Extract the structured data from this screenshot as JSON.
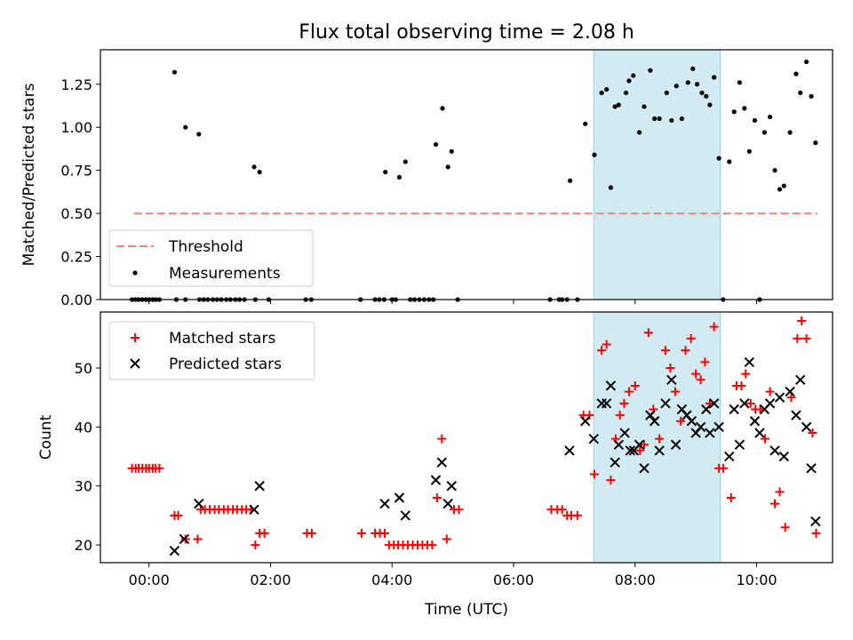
{
  "title": "Flux total observing time = 2.08 h",
  "chart_data": [
    {
      "panel": "top",
      "type": "scatter",
      "ylabel": "Matched/Predicted stars",
      "ylim": [
        0,
        1.45
      ],
      "yticks": [
        0.0,
        0.25,
        0.5,
        0.75,
        1.0,
        1.25
      ],
      "ytick_labels": [
        "0.00",
        "0.25",
        "0.50",
        "0.75",
        "1.00",
        "1.25"
      ],
      "grid": false,
      "legend_position": "lower-left",
      "threshold": {
        "name": "Threshold",
        "value": 0.5,
        "x_range": [
          -0.25,
          11.0
        ],
        "color": "#ff7f7f",
        "style": "dashed"
      },
      "series": [
        {
          "name": "Measurements",
          "marker": "dot",
          "color": "#000000",
          "points": [
            [
              -0.28,
              0
            ],
            [
              -0.22,
              0
            ],
            [
              -0.17,
              0
            ],
            [
              -0.11,
              0
            ],
            [
              -0.05,
              0
            ],
            [
              0.0,
              0
            ],
            [
              0.06,
              0
            ],
            [
              0.11,
              0
            ],
            [
              0.17,
              0
            ],
            [
              0.42,
              1.32
            ],
            [
              0.6,
              1.0
            ],
            [
              0.82,
              0.96
            ],
            [
              1.73,
              0.77
            ],
            [
              1.82,
              0.74
            ],
            [
              0.45,
              0
            ],
            [
              0.6,
              0
            ],
            [
              0.83,
              0
            ],
            [
              0.9,
              0
            ],
            [
              0.97,
              0
            ],
            [
              1.05,
              0
            ],
            [
              1.12,
              0
            ],
            [
              1.19,
              0
            ],
            [
              1.27,
              0
            ],
            [
              1.34,
              0
            ],
            [
              1.42,
              0
            ],
            [
              1.49,
              0
            ],
            [
              1.57,
              0
            ],
            [
              1.75,
              0
            ],
            [
              1.97,
              0
            ],
            [
              2.58,
              0
            ],
            [
              2.67,
              0
            ],
            [
              3.48,
              0
            ],
            [
              3.72,
              0
            ],
            [
              3.79,
              0
            ],
            [
              3.87,
              0
            ],
            [
              3.89,
              0.74
            ],
            [
              4.0,
              0
            ],
            [
              4.06,
              0
            ],
            [
              4.12,
              0.71
            ],
            [
              4.22,
              0.8
            ],
            [
              4.3,
              0
            ],
            [
              4.37,
              0
            ],
            [
              4.45,
              0
            ],
            [
              4.53,
              0
            ],
            [
              4.61,
              0
            ],
            [
              4.68,
              0
            ],
            [
              4.72,
              0.9
            ],
            [
              4.83,
              1.11
            ],
            [
              4.92,
              0.77
            ],
            [
              4.98,
              0.86
            ],
            [
              5.08,
              0
            ],
            [
              6.6,
              0
            ],
            [
              6.75,
              0
            ],
            [
              6.8,
              0
            ],
            [
              6.88,
              0
            ],
            [
              6.93,
              0.69
            ],
            [
              7.05,
              0
            ],
            [
              7.18,
              1.02
            ],
            [
              7.33,
              0.84
            ],
            [
              7.45,
              1.2
            ],
            [
              7.53,
              1.22
            ],
            [
              7.6,
              0.65
            ],
            [
              7.67,
              1.12
            ],
            [
              7.73,
              1.13
            ],
            [
              7.85,
              1.2
            ],
            [
              7.9,
              1.27
            ],
            [
              7.97,
              1.3
            ],
            [
              8.07,
              0.97
            ],
            [
              8.15,
              1.12
            ],
            [
              8.25,
              1.33
            ],
            [
              8.32,
              1.05
            ],
            [
              8.4,
              1.05
            ],
            [
              8.52,
              1.2
            ],
            [
              8.6,
              1.04
            ],
            [
              8.68,
              1.24
            ],
            [
              8.77,
              1.05
            ],
            [
              8.87,
              1.26
            ],
            [
              8.95,
              1.34
            ],
            [
              9.02,
              1.25
            ],
            [
              9.1,
              1.2
            ],
            [
              9.17,
              1.18
            ],
            [
              9.23,
              1.13
            ],
            [
              9.3,
              1.29
            ],
            [
              9.38,
              0.82
            ],
            [
              9.45,
              0
            ],
            [
              9.55,
              0.8
            ],
            [
              9.63,
              1.09
            ],
            [
              9.72,
              1.26
            ],
            [
              9.8,
              1.11
            ],
            [
              9.88,
              0.86
            ],
            [
              9.97,
              1.04
            ],
            [
              10.05,
              0
            ],
            [
              10.13,
              0.97
            ],
            [
              10.22,
              1.06
            ],
            [
              10.3,
              0.75
            ],
            [
              10.38,
              0.64
            ],
            [
              10.45,
              0.66
            ],
            [
              10.55,
              0.97
            ],
            [
              10.65,
              1.31
            ],
            [
              10.72,
              1.2
            ],
            [
              10.82,
              1.38
            ],
            [
              10.9,
              1.18
            ],
            [
              10.97,
              0.91
            ]
          ]
        }
      ]
    },
    {
      "panel": "bottom",
      "type": "scatter",
      "xlabel": "Time (UTC)",
      "ylabel": "Count",
      "xlim": [
        -0.8,
        11.25
      ],
      "ylim": [
        17,
        59.5
      ],
      "xticks": [
        0,
        2,
        4,
        6,
        8,
        10
      ],
      "xtick_labels": [
        "00:00",
        "02:00",
        "04:00",
        "06:00",
        "08:00",
        "10:00"
      ],
      "yticks": [
        20,
        30,
        40,
        50
      ],
      "ytick_labels": [
        "20",
        "30",
        "40",
        "50"
      ],
      "grid": false,
      "legend_position": "upper-left",
      "shaded_span": {
        "x_range": [
          7.32,
          9.4
        ],
        "color": "#add8e6"
      },
      "series": [
        {
          "name": "Matched stars",
          "marker": "plus",
          "color": "#ff0000",
          "points": [
            [
              -0.28,
              33
            ],
            [
              -0.22,
              33
            ],
            [
              -0.17,
              33
            ],
            [
              -0.11,
              33
            ],
            [
              -0.05,
              33
            ],
            [
              0.0,
              33
            ],
            [
              0.06,
              33
            ],
            [
              0.11,
              33
            ],
            [
              0.17,
              33
            ],
            [
              0.42,
              25
            ],
            [
              0.48,
              25
            ],
            [
              0.6,
              21
            ],
            [
              0.8,
              21
            ],
            [
              0.85,
              26
            ],
            [
              0.92,
              26
            ],
            [
              1.0,
              26
            ],
            [
              1.08,
              26
            ],
            [
              1.15,
              26
            ],
            [
              1.23,
              26
            ],
            [
              1.3,
              26
            ],
            [
              1.38,
              26
            ],
            [
              1.45,
              26
            ],
            [
              1.53,
              26
            ],
            [
              1.6,
              26
            ],
            [
              1.68,
              26
            ],
            [
              1.75,
              20
            ],
            [
              1.82,
              22
            ],
            [
              1.9,
              22
            ],
            [
              2.6,
              22
            ],
            [
              2.68,
              22
            ],
            [
              3.5,
              22
            ],
            [
              3.72,
              22
            ],
            [
              3.8,
              22
            ],
            [
              3.88,
              22
            ],
            [
              3.95,
              20
            ],
            [
              4.03,
              20
            ],
            [
              4.1,
              20
            ],
            [
              4.18,
              20
            ],
            [
              4.26,
              20
            ],
            [
              4.34,
              20
            ],
            [
              4.42,
              20
            ],
            [
              4.5,
              20
            ],
            [
              4.58,
              20
            ],
            [
              4.66,
              20
            ],
            [
              4.74,
              28
            ],
            [
              4.82,
              38
            ],
            [
              4.9,
              21
            ],
            [
              5.02,
              26
            ],
            [
              5.1,
              26
            ],
            [
              6.62,
              26
            ],
            [
              6.72,
              26
            ],
            [
              6.8,
              26
            ],
            [
              6.88,
              25
            ],
            [
              6.95,
              25
            ],
            [
              7.05,
              25
            ],
            [
              7.15,
              42
            ],
            [
              7.25,
              42
            ],
            [
              7.33,
              32
            ],
            [
              7.45,
              53
            ],
            [
              7.53,
              54
            ],
            [
              7.6,
              31
            ],
            [
              7.68,
              38
            ],
            [
              7.75,
              42
            ],
            [
              7.82,
              44
            ],
            [
              7.9,
              46
            ],
            [
              8.0,
              47
            ],
            [
              8.08,
              36
            ],
            [
              8.15,
              37
            ],
            [
              8.22,
              56
            ],
            [
              8.3,
              43
            ],
            [
              8.4,
              38
            ],
            [
              8.5,
              53
            ],
            [
              8.58,
              50
            ],
            [
              8.66,
              46
            ],
            [
              8.75,
              41
            ],
            [
              8.83,
              53
            ],
            [
              8.92,
              55
            ],
            [
              9.0,
              49
            ],
            [
              9.08,
              48
            ],
            [
              9.15,
              51
            ],
            [
              9.23,
              44
            ],
            [
              9.3,
              57
            ],
            [
              9.38,
              33
            ],
            [
              9.45,
              33
            ],
            [
              9.58,
              28
            ],
            [
              9.67,
              47
            ],
            [
              9.75,
              47
            ],
            [
              9.82,
              49
            ],
            [
              9.9,
              44
            ],
            [
              9.98,
              43
            ],
            [
              10.06,
              43
            ],
            [
              10.14,
              38
            ],
            [
              10.22,
              46
            ],
            [
              10.3,
              27
            ],
            [
              10.38,
              29
            ],
            [
              10.47,
              23
            ],
            [
              10.57,
              45
            ],
            [
              10.67,
              55
            ],
            [
              10.74,
              58
            ],
            [
              10.82,
              55
            ],
            [
              10.92,
              39
            ],
            [
              10.98,
              22
            ]
          ]
        },
        {
          "name": "Predicted stars",
          "marker": "x",
          "color": "#000000",
          "points": [
            [
              0.42,
              19
            ],
            [
              0.58,
              21
            ],
            [
              0.82,
              27
            ],
            [
              1.73,
              26
            ],
            [
              1.82,
              30
            ],
            [
              3.88,
              27
            ],
            [
              4.12,
              28
            ],
            [
              4.22,
              25
            ],
            [
              4.72,
              31
            ],
            [
              4.82,
              34
            ],
            [
              4.92,
              27
            ],
            [
              4.98,
              30
            ],
            [
              6.92,
              36
            ],
            [
              7.18,
              41
            ],
            [
              7.32,
              38
            ],
            [
              7.45,
              44
            ],
            [
              7.53,
              44
            ],
            [
              7.6,
              47
            ],
            [
              7.67,
              34
            ],
            [
              7.73,
              37
            ],
            [
              7.83,
              39
            ],
            [
              7.92,
              36
            ],
            [
              7.98,
              36
            ],
            [
              8.07,
              37
            ],
            [
              8.15,
              33
            ],
            [
              8.25,
              42
            ],
            [
              8.32,
              41
            ],
            [
              8.4,
              36
            ],
            [
              8.5,
              44
            ],
            [
              8.6,
              48
            ],
            [
              8.67,
              37
            ],
            [
              8.77,
              43
            ],
            [
              8.85,
              42
            ],
            [
              8.93,
              41
            ],
            [
              9.0,
              39
            ],
            [
              9.08,
              40
            ],
            [
              9.17,
              43
            ],
            [
              9.23,
              39
            ],
            [
              9.3,
              44
            ],
            [
              9.38,
              40
            ],
            [
              9.55,
              35
            ],
            [
              9.63,
              43
            ],
            [
              9.72,
              37
            ],
            [
              9.8,
              44
            ],
            [
              9.88,
              51
            ],
            [
              9.97,
              41
            ],
            [
              10.05,
              39
            ],
            [
              10.13,
              43
            ],
            [
              10.22,
              44
            ],
            [
              10.3,
              36
            ],
            [
              10.38,
              45
            ],
            [
              10.45,
              35
            ],
            [
              10.55,
              46
            ],
            [
              10.65,
              42
            ],
            [
              10.72,
              48
            ],
            [
              10.82,
              40
            ],
            [
              10.9,
              33
            ],
            [
              10.97,
              24
            ]
          ]
        }
      ]
    }
  ]
}
